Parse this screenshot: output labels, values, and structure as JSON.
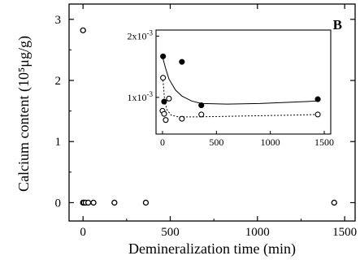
{
  "chart_data": [
    {
      "type": "scatter",
      "panel_label": "B",
      "xlabel": "Demineralization time (min)",
      "ylabel": "Calcium content (10⁵μg/g)",
      "xlim": [
        -80,
        1560
      ],
      "ylim": [
        -0.3,
        3.25
      ],
      "xticks": [
        0,
        500,
        1000,
        1500
      ],
      "yticks": [
        0,
        1,
        2,
        3
      ],
      "series": [
        {
          "marker": "open-circle",
          "points": [
            [
              0,
              2.82
            ],
            [
              0,
              0.0
            ],
            [
              5,
              0.0
            ],
            [
              15,
              0.0
            ],
            [
              30,
              0.0
            ],
            [
              60,
              0.0
            ],
            [
              180,
              0.0
            ],
            [
              360,
              0.0
            ],
            [
              1440,
              0.0
            ]
          ]
        }
      ]
    },
    {
      "type": "scatter",
      "role": "inset",
      "xlim": [
        -60,
        1560
      ],
      "ylim": [
        0.0004,
        0.0021
      ],
      "xticks": [
        0,
        500,
        1000,
        1500
      ],
      "ytick_labels": [
        {
          "value": 0.001,
          "mantissa": "1x10",
          "exp": "-3"
        },
        {
          "value": 0.002,
          "mantissa": "2x10",
          "exp": "-3"
        }
      ],
      "series": [
        {
          "marker": "filled-circle",
          "points": [
            [
              5,
              0.00167
            ],
            [
              15,
              0.00093
            ],
            [
              180,
              0.00158
            ],
            [
              360,
              0.00087
            ],
            [
              1440,
              0.00097
            ]
          ],
          "fit_curve": [
            [
              5,
              0.00163
            ],
            [
              30,
              0.00147
            ],
            [
              60,
              0.0013
            ],
            [
              120,
              0.00112
            ],
            [
              180,
              0.00102
            ],
            [
              270,
              0.00094
            ],
            [
              360,
              0.0009
            ],
            [
              600,
              0.00089
            ],
            [
              900,
              0.0009
            ],
            [
              1200,
              0.00092
            ],
            [
              1440,
              0.00094
            ]
          ]
        },
        {
          "marker": "open-circle",
          "points": [
            [
              0,
              0.00078
            ],
            [
              5,
              0.00132
            ],
            [
              15,
              0.00073
            ],
            [
              30,
              0.00063
            ],
            [
              60,
              0.00098
            ],
            [
              180,
              0.00065
            ],
            [
              360,
              0.00072
            ],
            [
              1440,
              0.00072
            ]
          ],
          "fit_curve": [
            [
              5,
              0.00128
            ],
            [
              20,
              0.00095
            ],
            [
              40,
              0.0008
            ],
            [
              80,
              0.00071
            ],
            [
              150,
              0.00068
            ],
            [
              300,
              0.00068
            ],
            [
              600,
              0.00069
            ],
            [
              900,
              0.0007
            ],
            [
              1200,
              0.00071
            ],
            [
              1440,
              0.00072
            ]
          ]
        }
      ]
    }
  ]
}
